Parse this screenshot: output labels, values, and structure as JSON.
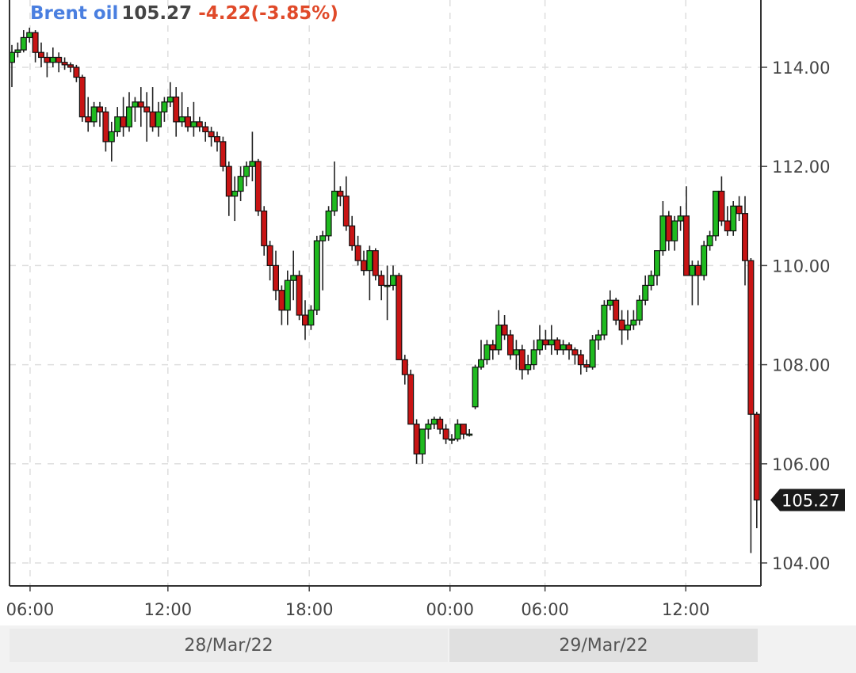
{
  "header": {
    "instrument": "Brent oil",
    "last": "105.27",
    "change": "-4.22(-3.85%)"
  },
  "colors": {
    "up": "#1fba1f",
    "down": "#c81414",
    "name": "#4a7fe0",
    "change": "#e04a2a"
  },
  "dates": [
    "28/Mar/22",
    "29/Mar/22"
  ],
  "chart_data": {
    "type": "candlestick",
    "title": "Brent oil",
    "grid": true,
    "ylim": [
      103.6,
      115.35
    ],
    "yticks": [
      "114.00",
      "112.00",
      "110.00",
      "108.00",
      "106.00",
      "104.00"
    ],
    "xticks": [
      "06:00",
      "12:00",
      "18:00",
      "00:00",
      "06:00",
      "12:00"
    ],
    "last_price_label": "105.27",
    "ohlc": [
      [
        114.1,
        114.45,
        113.6,
        114.3
      ],
      [
        114.3,
        114.5,
        114.2,
        114.35
      ],
      [
        114.35,
        114.75,
        114.3,
        114.6
      ],
      [
        114.6,
        114.8,
        114.5,
        114.7
      ],
      [
        114.7,
        114.75,
        114.1,
        114.3
      ],
      [
        114.3,
        114.5,
        114.0,
        114.2
      ],
      [
        114.2,
        114.3,
        113.8,
        114.1
      ],
      [
        114.1,
        114.4,
        114.0,
        114.2
      ],
      [
        114.2,
        114.3,
        113.9,
        114.1
      ],
      [
        114.1,
        114.2,
        113.95,
        114.05
      ],
      [
        114.05,
        114.1,
        113.9,
        114.0
      ],
      [
        114.0,
        114.05,
        113.7,
        113.8
      ],
      [
        113.8,
        113.85,
        112.9,
        113.0
      ],
      [
        113.0,
        113.4,
        112.7,
        112.9
      ],
      [
        112.9,
        113.3,
        112.8,
        113.2
      ],
      [
        113.2,
        113.3,
        112.8,
        113.1
      ],
      [
        113.1,
        113.2,
        112.3,
        112.5
      ],
      [
        112.5,
        112.9,
        112.1,
        112.7
      ],
      [
        112.7,
        113.2,
        112.6,
        113.0
      ],
      [
        113.0,
        113.4,
        112.6,
        112.8
      ],
      [
        112.8,
        113.5,
        112.7,
        113.2
      ],
      [
        113.2,
        113.4,
        112.9,
        113.3
      ],
      [
        113.3,
        113.6,
        112.8,
        113.2
      ],
      [
        113.2,
        113.5,
        112.5,
        113.1
      ],
      [
        113.1,
        113.6,
        112.7,
        112.8
      ],
      [
        112.8,
        113.3,
        112.6,
        113.1
      ],
      [
        113.1,
        113.4,
        112.9,
        113.3
      ],
      [
        113.3,
        113.7,
        113.2,
        113.4
      ],
      [
        113.4,
        113.6,
        112.6,
        112.9
      ],
      [
        112.9,
        113.5,
        112.8,
        113.0
      ],
      [
        113.0,
        113.2,
        112.7,
        112.8
      ],
      [
        112.8,
        113.3,
        112.6,
        112.9
      ],
      [
        112.9,
        113.0,
        112.7,
        112.8
      ],
      [
        112.8,
        112.9,
        112.5,
        112.7
      ],
      [
        112.7,
        112.8,
        112.4,
        112.6
      ],
      [
        112.6,
        112.7,
        112.3,
        112.5
      ],
      [
        112.5,
        112.6,
        111.9,
        112.0
      ],
      [
        112.0,
        112.1,
        111.0,
        111.4
      ],
      [
        111.4,
        111.8,
        110.9,
        111.5
      ],
      [
        111.5,
        112.0,
        111.3,
        111.8
      ],
      [
        111.8,
        112.1,
        111.6,
        112.0
      ],
      [
        112.0,
        112.7,
        111.7,
        112.1
      ],
      [
        112.1,
        112.15,
        111.0,
        111.1
      ],
      [
        111.1,
        111.2,
        110.2,
        110.4
      ],
      [
        110.4,
        110.5,
        109.7,
        110.0
      ],
      [
        110.0,
        110.3,
        109.3,
        109.5
      ],
      [
        109.5,
        109.6,
        108.8,
        109.1
      ],
      [
        109.1,
        109.9,
        108.8,
        109.7
      ],
      [
        109.7,
        110.3,
        109.3,
        109.8
      ],
      [
        109.8,
        109.9,
        108.9,
        109.0
      ],
      [
        109.0,
        109.3,
        108.5,
        108.8
      ],
      [
        108.8,
        109.2,
        108.7,
        109.1
      ],
      [
        109.1,
        110.6,
        109.0,
        110.5
      ],
      [
        110.5,
        110.7,
        109.5,
        110.6
      ],
      [
        110.6,
        111.2,
        110.5,
        111.1
      ],
      [
        111.1,
        112.1,
        111.0,
        111.5
      ],
      [
        111.5,
        111.6,
        111.2,
        111.4
      ],
      [
        111.4,
        111.8,
        110.7,
        110.8
      ],
      [
        110.8,
        111.0,
        110.3,
        110.4
      ],
      [
        110.4,
        110.6,
        110.0,
        110.1
      ],
      [
        110.1,
        110.3,
        109.8,
        109.9
      ],
      [
        109.9,
        110.4,
        109.3,
        110.3
      ],
      [
        110.3,
        110.35,
        109.7,
        109.8
      ],
      [
        109.8,
        109.9,
        109.3,
        109.6
      ],
      [
        109.6,
        110.0,
        108.9,
        109.6
      ],
      [
        109.6,
        110.0,
        109.5,
        109.8
      ],
      [
        109.8,
        109.85,
        108.1,
        108.1
      ],
      [
        108.1,
        108.2,
        107.6,
        107.8
      ],
      [
        107.8,
        107.9,
        106.8,
        106.8
      ],
      [
        106.8,
        106.9,
        106.0,
        106.2
      ],
      [
        106.2,
        106.7,
        106.0,
        106.7
      ],
      [
        106.7,
        106.9,
        106.5,
        106.8
      ],
      [
        106.8,
        106.95,
        106.7,
        106.9
      ],
      [
        106.9,
        106.95,
        106.6,
        106.7
      ],
      [
        106.7,
        106.8,
        106.4,
        106.5
      ],
      [
        106.5,
        106.6,
        106.4,
        106.5
      ],
      [
        106.5,
        106.9,
        106.45,
        106.8
      ],
      [
        106.8,
        106.8,
        106.5,
        106.6
      ],
      [
        106.6,
        106.7,
        106.55,
        106.6
      ],
      [
        107.15,
        108.0,
        107.1,
        107.95
      ],
      [
        107.95,
        108.5,
        107.9,
        108.1
      ],
      [
        108.1,
        108.5,
        108.0,
        108.4
      ],
      [
        108.4,
        108.5,
        108.1,
        108.3
      ],
      [
        108.3,
        109.1,
        108.2,
        108.8
      ],
      [
        108.8,
        109.0,
        108.5,
        108.6
      ],
      [
        108.6,
        108.7,
        108.1,
        108.2
      ],
      [
        108.2,
        108.5,
        107.9,
        108.3
      ],
      [
        108.3,
        108.4,
        107.7,
        107.9
      ],
      [
        107.9,
        108.2,
        107.8,
        108.0
      ],
      [
        108.0,
        108.5,
        107.9,
        108.3
      ],
      [
        108.3,
        108.8,
        108.2,
        108.5
      ],
      [
        108.5,
        108.7,
        108.3,
        108.4
      ],
      [
        108.4,
        108.8,
        108.2,
        108.5
      ],
      [
        108.5,
        108.55,
        108.2,
        108.3
      ],
      [
        108.3,
        108.5,
        108.2,
        108.4
      ],
      [
        108.4,
        108.45,
        108.1,
        108.3
      ],
      [
        108.3,
        108.35,
        108.0,
        108.2
      ],
      [
        108.2,
        108.3,
        107.8,
        108.0
      ],
      [
        108.0,
        108.1,
        107.85,
        107.95
      ],
      [
        107.95,
        108.6,
        107.9,
        108.5
      ],
      [
        108.5,
        108.7,
        108.3,
        108.6
      ],
      [
        108.6,
        109.3,
        108.5,
        109.2
      ],
      [
        109.2,
        109.5,
        109.1,
        109.3
      ],
      [
        109.3,
        109.35,
        108.8,
        108.9
      ],
      [
        108.9,
        109.1,
        108.4,
        108.7
      ],
      [
        108.7,
        109.1,
        108.5,
        108.8
      ],
      [
        108.8,
        109.1,
        108.7,
        108.9
      ],
      [
        108.9,
        109.4,
        108.8,
        109.3
      ],
      [
        109.3,
        109.8,
        109.2,
        109.6
      ],
      [
        109.6,
        109.9,
        109.5,
        109.8
      ],
      [
        109.8,
        110.3,
        109.6,
        110.3
      ],
      [
        110.3,
        111.3,
        110.2,
        111.0
      ],
      [
        111.0,
        111.1,
        110.3,
        110.5
      ],
      [
        110.5,
        111.0,
        110.3,
        110.9
      ],
      [
        110.9,
        111.2,
        110.7,
        111.0
      ],
      [
        111.0,
        111.6,
        109.8,
        109.8
      ],
      [
        109.8,
        110.1,
        109.2,
        110.0
      ],
      [
        110.0,
        110.1,
        109.2,
        109.8
      ],
      [
        109.8,
        110.5,
        109.7,
        110.4
      ],
      [
        110.4,
        110.7,
        110.3,
        110.6
      ],
      [
        110.6,
        111.5,
        110.5,
        111.5
      ],
      [
        111.5,
        111.8,
        110.8,
        110.9
      ],
      [
        110.9,
        111.2,
        110.6,
        110.7
      ],
      [
        110.7,
        111.3,
        110.6,
        111.2
      ],
      [
        111.2,
        111.4,
        110.9,
        111.05
      ],
      [
        111.05,
        111.4,
        109.6,
        110.1
      ],
      [
        110.1,
        110.15,
        104.2,
        107.0
      ],
      [
        107.0,
        107.05,
        104.7,
        105.27
      ]
    ]
  }
}
